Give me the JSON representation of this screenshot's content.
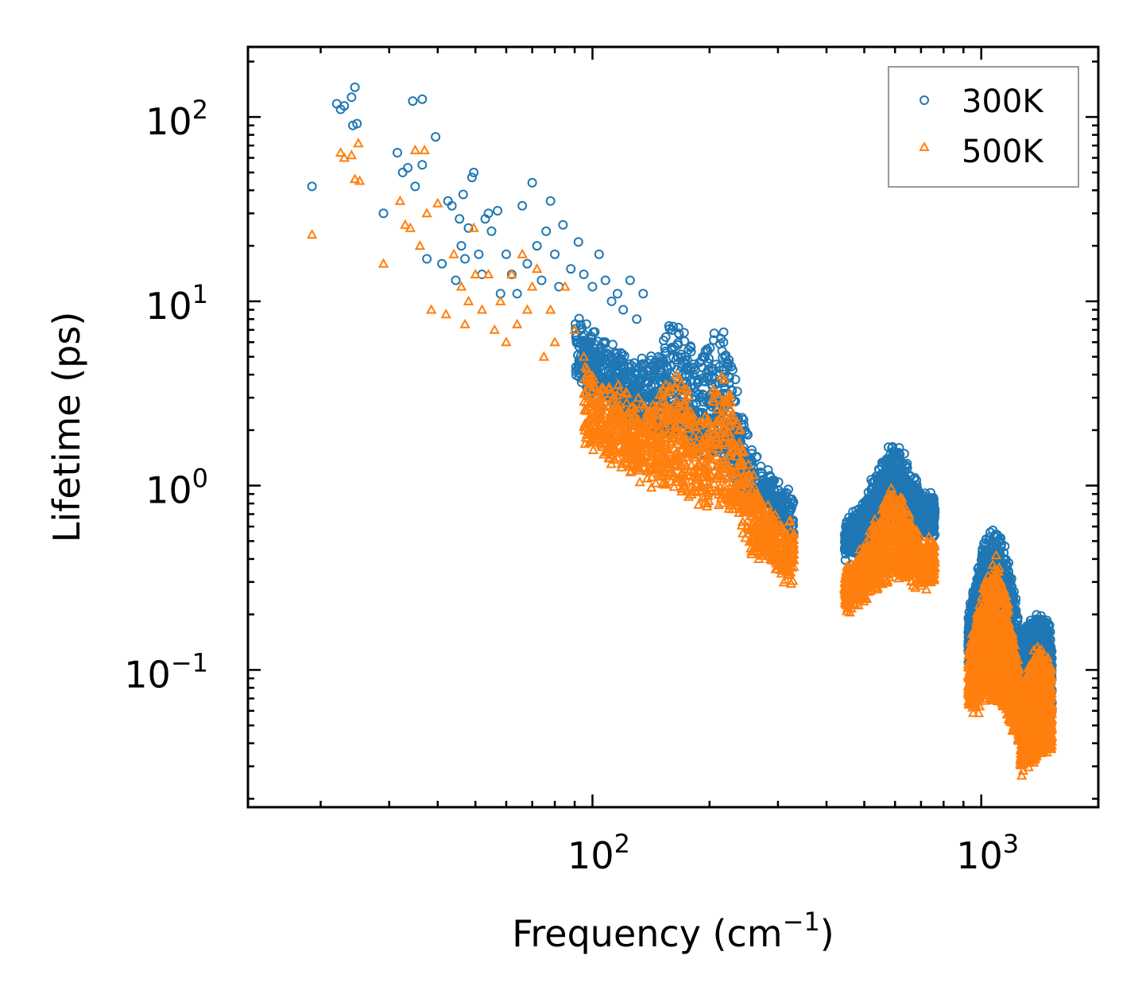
{
  "chart_data": {
    "type": "scatter",
    "xscale": "log",
    "yscale": "log",
    "xlim": [
      13,
      2000
    ],
    "ylim": [
      0.018,
      240
    ],
    "xlabel": "Frequency (cm",
    "xlabel_sup": "−1",
    "xlabel_suffix": ")",
    "ylabel": "Lifetime (ps)",
    "x_ticks": [
      {
        "value": 100,
        "base": "10",
        "exp": "2"
      },
      {
        "value": 1000,
        "base": "10",
        "exp": "3"
      }
    ],
    "y_ticks": [
      {
        "value": 100,
        "base": "10",
        "exp": "2"
      },
      {
        "value": 10,
        "base": "10",
        "exp": "1"
      },
      {
        "value": 1,
        "base": "10",
        "exp": "0"
      },
      {
        "value": 0.1,
        "base": "10",
        "exp": "−1"
      }
    ],
    "legend_position": "top-right",
    "series": [
      {
        "name": "300K",
        "marker": "circle",
        "color": "#1f77b4",
        "points": [
          [
            19,
            42
          ],
          [
            22,
            118
          ],
          [
            22.5,
            110
          ],
          [
            23,
            115
          ],
          [
            24,
            128
          ],
          [
            24.2,
            90
          ],
          [
            24.5,
            145
          ],
          [
            24.8,
            92
          ],
          [
            29,
            30
          ],
          [
            31.5,
            64
          ],
          [
            32.5,
            50
          ],
          [
            33.5,
            53
          ],
          [
            34.5,
            122
          ],
          [
            35,
            42
          ],
          [
            36.5,
            125
          ],
          [
            36.5,
            55
          ],
          [
            37.5,
            17
          ],
          [
            39.5,
            78
          ],
          [
            41,
            16
          ],
          [
            42.5,
            35
          ],
          [
            43.5,
            33
          ],
          [
            44.5,
            13
          ],
          [
            45.5,
            28
          ],
          [
            46,
            20
          ],
          [
            46.5,
            38
          ],
          [
            47,
            17
          ],
          [
            48,
            25
          ],
          [
            49,
            47
          ],
          [
            49.5,
            50
          ],
          [
            51,
            18
          ],
          [
            52,
            14
          ],
          [
            53,
            28
          ],
          [
            54,
            30
          ],
          [
            55,
            24
          ],
          [
            57,
            31
          ],
          [
            58,
            11
          ],
          [
            60,
            18
          ],
          [
            62,
            14
          ],
          [
            64,
            11
          ],
          [
            66,
            33
          ],
          [
            68,
            16
          ],
          [
            70,
            44
          ],
          [
            72,
            20
          ],
          [
            74,
            13
          ],
          [
            76,
            24
          ],
          [
            78,
            35
          ],
          [
            80,
            18
          ],
          [
            82,
            12
          ],
          [
            84,
            26
          ],
          [
            88,
            15
          ],
          [
            92,
            21
          ],
          [
            95,
            14
          ],
          [
            100,
            12
          ],
          [
            104,
            18
          ],
          [
            108,
            13
          ],
          [
            112,
            10
          ],
          [
            116,
            11
          ],
          [
            120,
            9
          ],
          [
            125,
            13
          ],
          [
            130,
            8
          ],
          [
            135,
            11
          ]
        ],
        "bands": [
          {
            "x": [
              90,
              330
            ],
            "y_start": [
              8.5,
              0.85
            ],
            "y_end": [
              4.6,
              0.65
            ],
            "peaks": [
              [
                165,
                8.0
              ],
              [
                210,
                7.5
              ]
            ],
            "spread": 0.33
          },
          {
            "x": [
              445,
              760
            ],
            "y_start": [
              0.62,
              0.8
            ],
            "y_end": [
              0.55,
              0.72
            ],
            "peaks": [
              [
                590,
                1.6
              ]
            ],
            "spread": 0.25
          },
          {
            "x": [
              925,
              1250
            ],
            "y_start": [
              0.14,
              0.11
            ],
            "y_end": [
              0.14,
              0.11
            ],
            "peaks": [
              [
                1080,
                0.58
              ]
            ],
            "spread": 0.22
          },
          {
            "x": [
              1260,
              1520
            ],
            "y_start": [
              0.11,
              0.058
            ],
            "y_end": [
              0.11,
              0.055
            ],
            "peaks": [
              [
                1420,
                0.19
              ]
            ],
            "spread": 0.22
          }
        ]
      },
      {
        "name": "500K",
        "marker": "triangle",
        "color": "#ff7f0e",
        "points": [
          [
            19,
            23
          ],
          [
            22.5,
            64
          ],
          [
            23,
            60
          ],
          [
            24,
            62
          ],
          [
            24.5,
            46
          ],
          [
            25,
            72
          ],
          [
            25.2,
            45
          ],
          [
            29,
            16
          ],
          [
            32,
            35
          ],
          [
            33,
            26
          ],
          [
            34,
            25
          ],
          [
            35,
            66
          ],
          [
            36,
            20
          ],
          [
            37,
            66
          ],
          [
            37.5,
            30
          ],
          [
            38.5,
            9
          ],
          [
            40,
            34
          ],
          [
            42,
            8.5
          ],
          [
            44,
            18
          ],
          [
            46,
            12
          ],
          [
            47,
            7.5
          ],
          [
            48,
            10
          ],
          [
            49.5,
            25
          ],
          [
            50,
            14
          ],
          [
            52,
            9
          ],
          [
            54,
            14
          ],
          [
            56,
            7
          ],
          [
            58,
            10
          ],
          [
            60,
            6
          ],
          [
            62,
            14
          ],
          [
            64,
            7.5
          ],
          [
            66,
            18
          ],
          [
            68,
            9
          ],
          [
            70,
            12
          ],
          [
            72,
            15
          ],
          [
            75,
            5
          ],
          [
            78,
            9
          ],
          [
            80,
            6
          ],
          [
            85,
            12
          ],
          [
            90,
            7
          ],
          [
            95,
            5
          ]
        ],
        "bands": [
          {
            "x": [
              95,
              330
            ],
            "y_start": [
              4.6,
              0.55
            ],
            "y_end": [
              2.2,
              0.42
            ],
            "peaks": [
              [
                165,
                4.2
              ],
              [
                215,
                4.0
              ]
            ],
            "spread": 0.35
          },
          {
            "x": [
              445,
              760
            ],
            "y_start": [
              0.33,
              0.45
            ],
            "y_end": [
              0.29,
              0.4
            ],
            "peaks": [
              [
                590,
                0.9
              ]
            ],
            "spread": 0.25
          },
          {
            "x": [
              925,
              1250
            ],
            "y_start": [
              0.085,
              0.06
            ],
            "y_end": [
              0.07,
              0.045
            ],
            "peaks": [
              [
                1080,
                0.38
              ]
            ],
            "spread": 0.22
          },
          {
            "x": [
              1260,
              1520
            ],
            "y_start": [
              0.055,
              0.045
            ],
            "y_end": [
              0.03,
              0.04
            ],
            "peaks": [
              [
                1420,
                0.12
              ]
            ],
            "spread": 0.25
          }
        ]
      }
    ]
  }
}
